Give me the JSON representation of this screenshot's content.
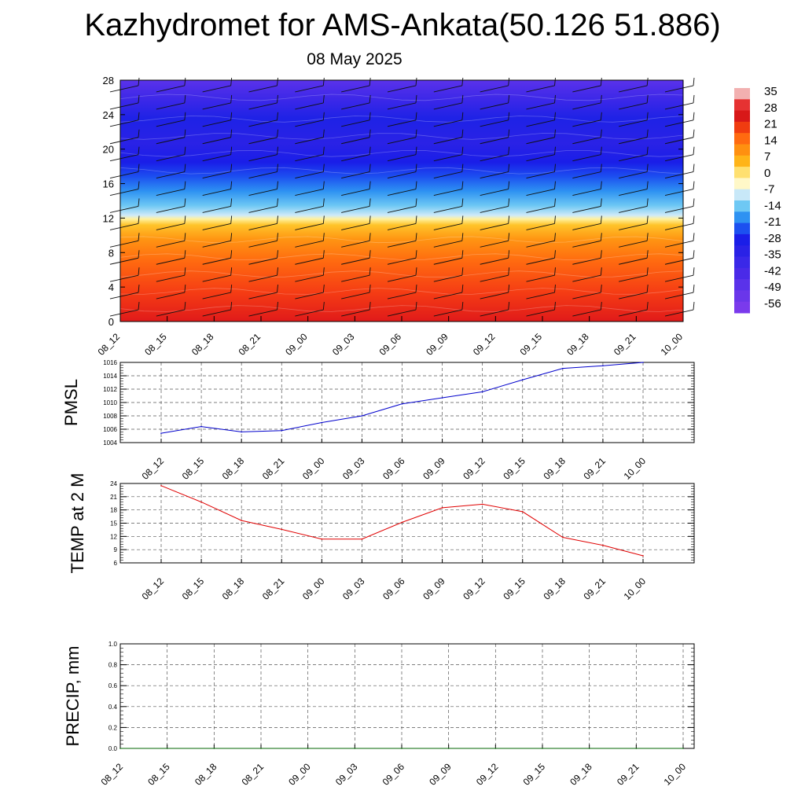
{
  "header": {
    "title": "Kazhydromet for AMS-Ankata(50.126 51.886)",
    "date": "08 May 2025"
  },
  "chart_data": [
    {
      "type": "heatmap",
      "name": "vertical temperature cross-section",
      "x_labels": [
        "08_12",
        "08_15",
        "08_18",
        "08_21",
        "09_00",
        "09_03",
        "09_06",
        "09_09",
        "09_12",
        "09_15",
        "09_18",
        "09_21",
        "10_00"
      ],
      "y_ticks": [
        0,
        4,
        8,
        12,
        16,
        20,
        24,
        28
      ],
      "ylim": [
        0,
        28
      ],
      "colorbar_labels": [
        "35",
        "28",
        "21",
        "14",
        "7",
        "0",
        "-7",
        "-14",
        "-21",
        "-28",
        "-35",
        "-42",
        "-49",
        "-56"
      ],
      "colors": {
        "warm": [
          "#e31a1a",
          "#f23c1a",
          "#ff6a10",
          "#ff9410",
          "#ffc020",
          "#ffe860",
          "#fff8c0"
        ],
        "cold": [
          "#c8e8f8",
          "#5cc0f0",
          "#2a8cf0",
          "#1e58f0",
          "#2020e0",
          "#3828e8",
          "#5a2ee8",
          "#7030e8"
        ]
      }
    },
    {
      "type": "line",
      "ylabel": "PMSL",
      "x_labels": [
        "08_12",
        "08_15",
        "08_18",
        "08_21",
        "09_00",
        "09_03",
        "09_06",
        "09_09",
        "09_12",
        "09_15",
        "09_18",
        "09_21",
        "10_00"
      ],
      "y_ticks": [
        1004,
        1006,
        1008,
        1010,
        1012,
        1014,
        1016
      ],
      "ylim": [
        1004,
        1016
      ],
      "values": [
        1005.4,
        1006.4,
        1005.6,
        1005.8,
        1007.0,
        1008.0,
        1009.8,
        1010.7,
        1011.6,
        1013.4,
        1015.1,
        1015.5,
        1016.0
      ],
      "color": "#0000cc",
      "grid": true
    },
    {
      "type": "line",
      "ylabel": "TEMP at 2 M",
      "x_labels": [
        "08_12",
        "08_15",
        "08_18",
        "08_21",
        "09_00",
        "09_03",
        "09_06",
        "09_09",
        "09_12",
        "09_15",
        "09_18",
        "09_21",
        "10_00"
      ],
      "y_ticks": [
        6,
        9,
        12,
        15,
        18,
        21,
        24
      ],
      "ylim": [
        6,
        24
      ],
      "values": [
        23.5,
        19.8,
        15.6,
        13.6,
        11.4,
        11.4,
        15.2,
        18.5,
        19.3,
        17.6,
        11.8,
        10.0,
        7.6
      ],
      "color": "#e00000",
      "grid": true
    },
    {
      "type": "line",
      "ylabel": "PRECIP, mm",
      "x_labels": [
        "08_12",
        "08_15",
        "08_18",
        "08_21",
        "09_00",
        "09_03",
        "09_06",
        "09_09",
        "09_12",
        "09_15",
        "09_18",
        "09_21",
        "10_00"
      ],
      "y_ticks": [
        "0.0",
        "0.2",
        "0.4",
        "0.6",
        "0.8",
        "1.0"
      ],
      "ylim": [
        0,
        1
      ],
      "values": [
        0,
        0,
        0,
        0,
        0,
        0,
        0,
        0,
        0,
        0,
        0,
        0,
        0
      ],
      "color": "#006400",
      "grid": true
    }
  ]
}
